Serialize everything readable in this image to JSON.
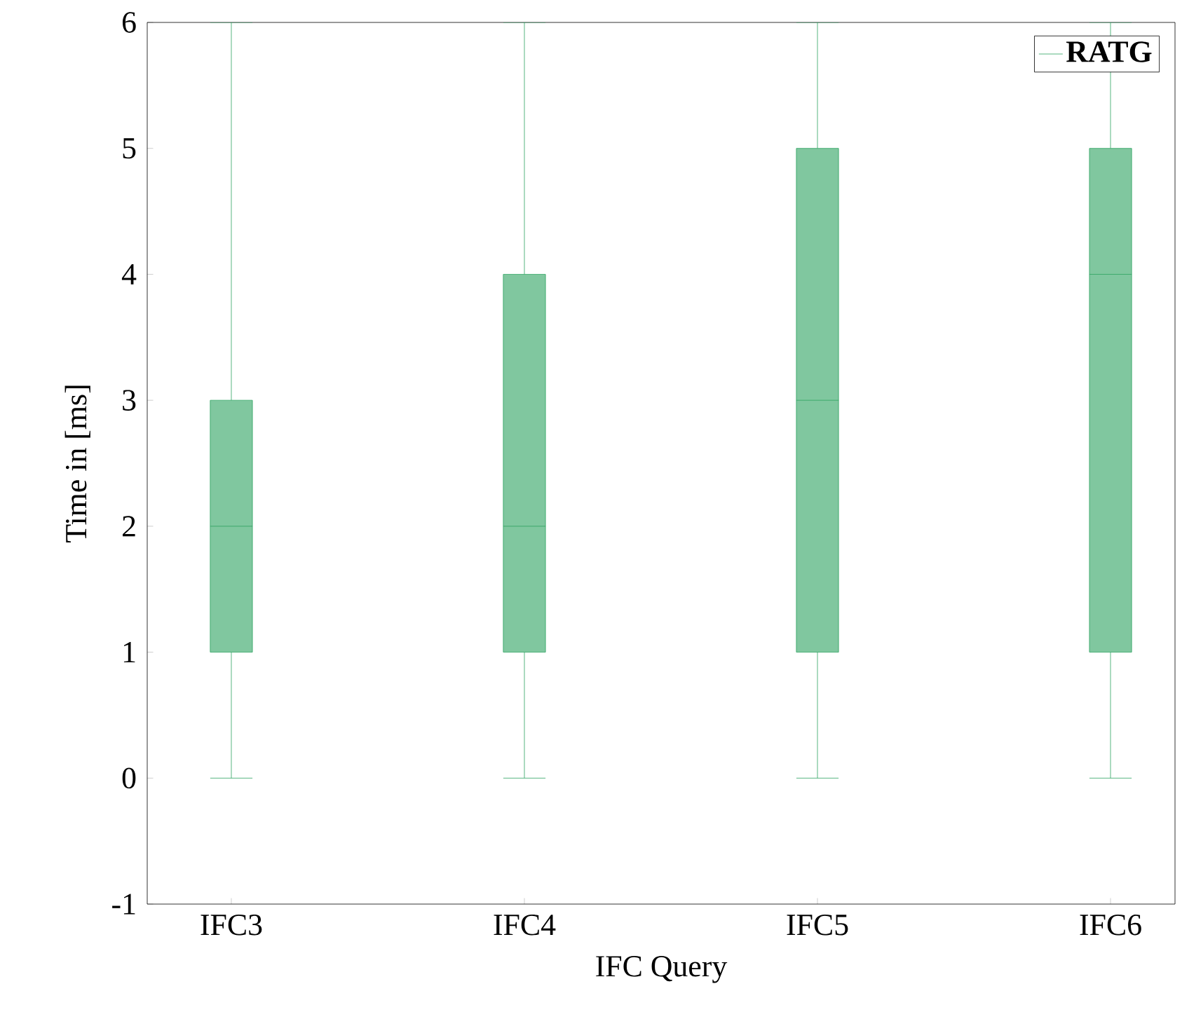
{
  "chart_data": {
    "type": "box",
    "categories": [
      "IFC3",
      "IFC4",
      "IFC5",
      "IFC6"
    ],
    "xlabel": "IFC Query",
    "ylabel": "Time in [ms]",
    "series": [
      {
        "name": "RATG",
        "color": "#2ca25f",
        "boxes": [
          {
            "low": 0,
            "q1": 1,
            "median": 2,
            "q3": 3,
            "high": 6
          },
          {
            "low": 0,
            "q1": 1,
            "median": 2,
            "q3": 4,
            "high": 6
          },
          {
            "low": 0,
            "q1": 1,
            "median": 3,
            "q3": 5,
            "high": 6
          },
          {
            "low": 0,
            "q1": 1,
            "median": 4,
            "q3": 5,
            "high": 6
          }
        ]
      }
    ],
    "ylim": [
      -1,
      6
    ],
    "yticks": [
      -1,
      0,
      1,
      2,
      3,
      4,
      5,
      6
    ],
    "legend": "top right",
    "grid": false
  }
}
